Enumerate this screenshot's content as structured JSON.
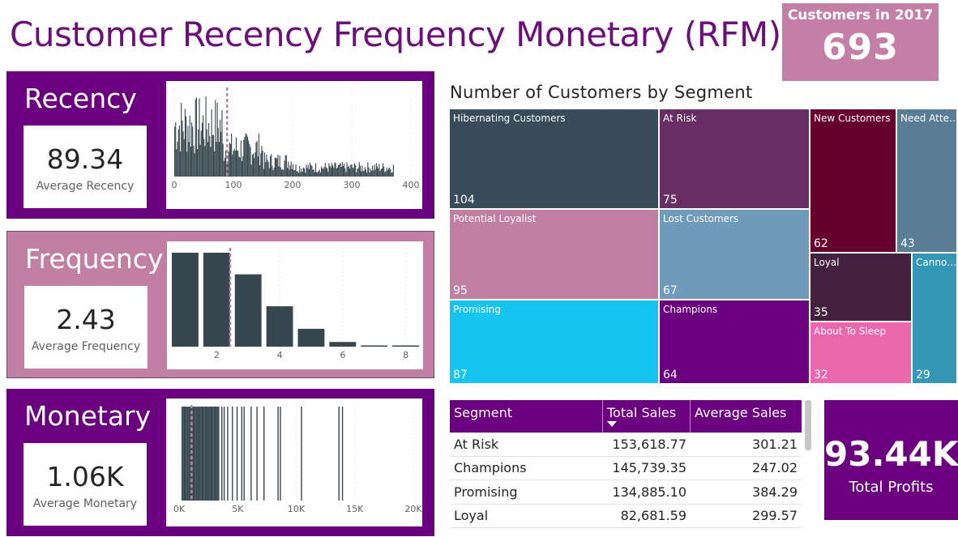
{
  "title": "Customer Recency Frequency Monetary (RFM)",
  "kpi_customers": {
    "label": "Customers in 2017",
    "value": "693"
  },
  "recency": {
    "name": "Recency",
    "value": "89.34",
    "caption": "Average Recency",
    "ticks": [
      "0",
      "100",
      "200",
      "300",
      "400"
    ],
    "xlim": [
      0,
      400
    ],
    "avg": 89.34,
    "bar_color": "#37474f"
  },
  "frequency": {
    "name": "Frequency",
    "value": "2.43",
    "caption": "Average Frequency",
    "ticks": [
      "2",
      "4",
      "6",
      "8"
    ],
    "avg": 2.43,
    "bars": [
      1,
      2,
      3,
      4,
      5,
      6,
      7,
      8
    ],
    "counts": [
      1,
      1,
      0.77,
      0.43,
      0.19,
      0.05,
      0.01,
      0.01
    ]
  },
  "monetary": {
    "name": "Monetary",
    "value": "1.06K",
    "caption": "Average Monetary",
    "ticks": [
      "0K",
      "5K",
      "10K",
      "15K",
      "20K"
    ],
    "xlim": [
      0,
      20000
    ],
    "avg": 1060
  },
  "segment_chart": {
    "title": "Number of Customers by Segment",
    "tiles": [
      {
        "name": "Hibernating Customers",
        "value": "104",
        "color": "#374b5a"
      },
      {
        "name": "At Risk",
        "value": "75",
        "color": "#662e63"
      },
      {
        "name": "New Customers",
        "value": "62",
        "color": "#68002e"
      },
      {
        "name": "Need Atte…",
        "value": "43",
        "color": "#5a7d96"
      },
      {
        "name": "Potential Loyalist",
        "value": "95",
        "color": "#c27fa4"
      },
      {
        "name": "Lost Customers",
        "value": "67",
        "color": "#6f9ab9"
      },
      {
        "name": "Loyal",
        "value": "35",
        "color": "#43203d"
      },
      {
        "name": "Canno…",
        "value": "29",
        "color": "#3497b6"
      },
      {
        "name": "Promising",
        "value": "87",
        "color": "#16c5ef"
      },
      {
        "name": "Champions",
        "value": "64",
        "color": "#6b007f"
      },
      {
        "name": "About To Sleep",
        "value": "32",
        "color": "#ea66ad"
      }
    ]
  },
  "table": {
    "headers": [
      "Segment",
      "Total Sales",
      "Average Sales"
    ],
    "rows": [
      [
        "At Risk",
        "153,618.77",
        "301.21"
      ],
      [
        "Champions",
        "145,739.35",
        "247.02"
      ],
      [
        "Promising",
        "134,885.10",
        "384.29"
      ],
      [
        "Loyal",
        "82,681.59",
        "299.57"
      ]
    ]
  },
  "profit": {
    "value": "93.44K",
    "label": "Total Profits"
  },
  "colors": {
    "purple": "#6b007f",
    "pink": "#c27fa4",
    "bar": "#37474f",
    "avg_line": "#c27fa4"
  }
}
